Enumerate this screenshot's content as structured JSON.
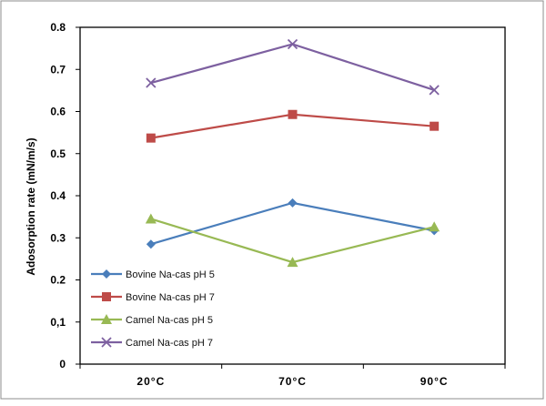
{
  "chart_data": {
    "type": "line",
    "title": "",
    "xlabel": "",
    "ylabel": "Adosorption rate (mN/m/s)",
    "categories": [
      "20°C",
      "70°C",
      "90°C"
    ],
    "ylim": [
      0,
      0.8
    ],
    "yticks": [
      "0",
      "0,1",
      "0.2",
      "0.3",
      "0.4",
      "0.5",
      "0.6",
      "0.7",
      "0.8"
    ],
    "grid": false,
    "legend_position": "bottom-left",
    "series": [
      {
        "name": "Bovine Na-cas pH 5",
        "values": [
          0.285,
          0.383,
          0.317
        ],
        "color": "#4a7ebb",
        "marker": "diamond"
      },
      {
        "name": "Bovine Na-cas pH 7",
        "values": [
          0.537,
          0.593,
          0.565
        ],
        "color": "#be4b48",
        "marker": "square"
      },
      {
        "name": "Camel Na-cas pH 5",
        "values": [
          0.345,
          0.242,
          0.326
        ],
        "color": "#98b954",
        "marker": "triangle"
      },
      {
        "name": "Camel Na-cas pH 7",
        "values": [
          0.668,
          0.76,
          0.651
        ],
        "color": "#7d60a0",
        "marker": "x"
      }
    ]
  }
}
